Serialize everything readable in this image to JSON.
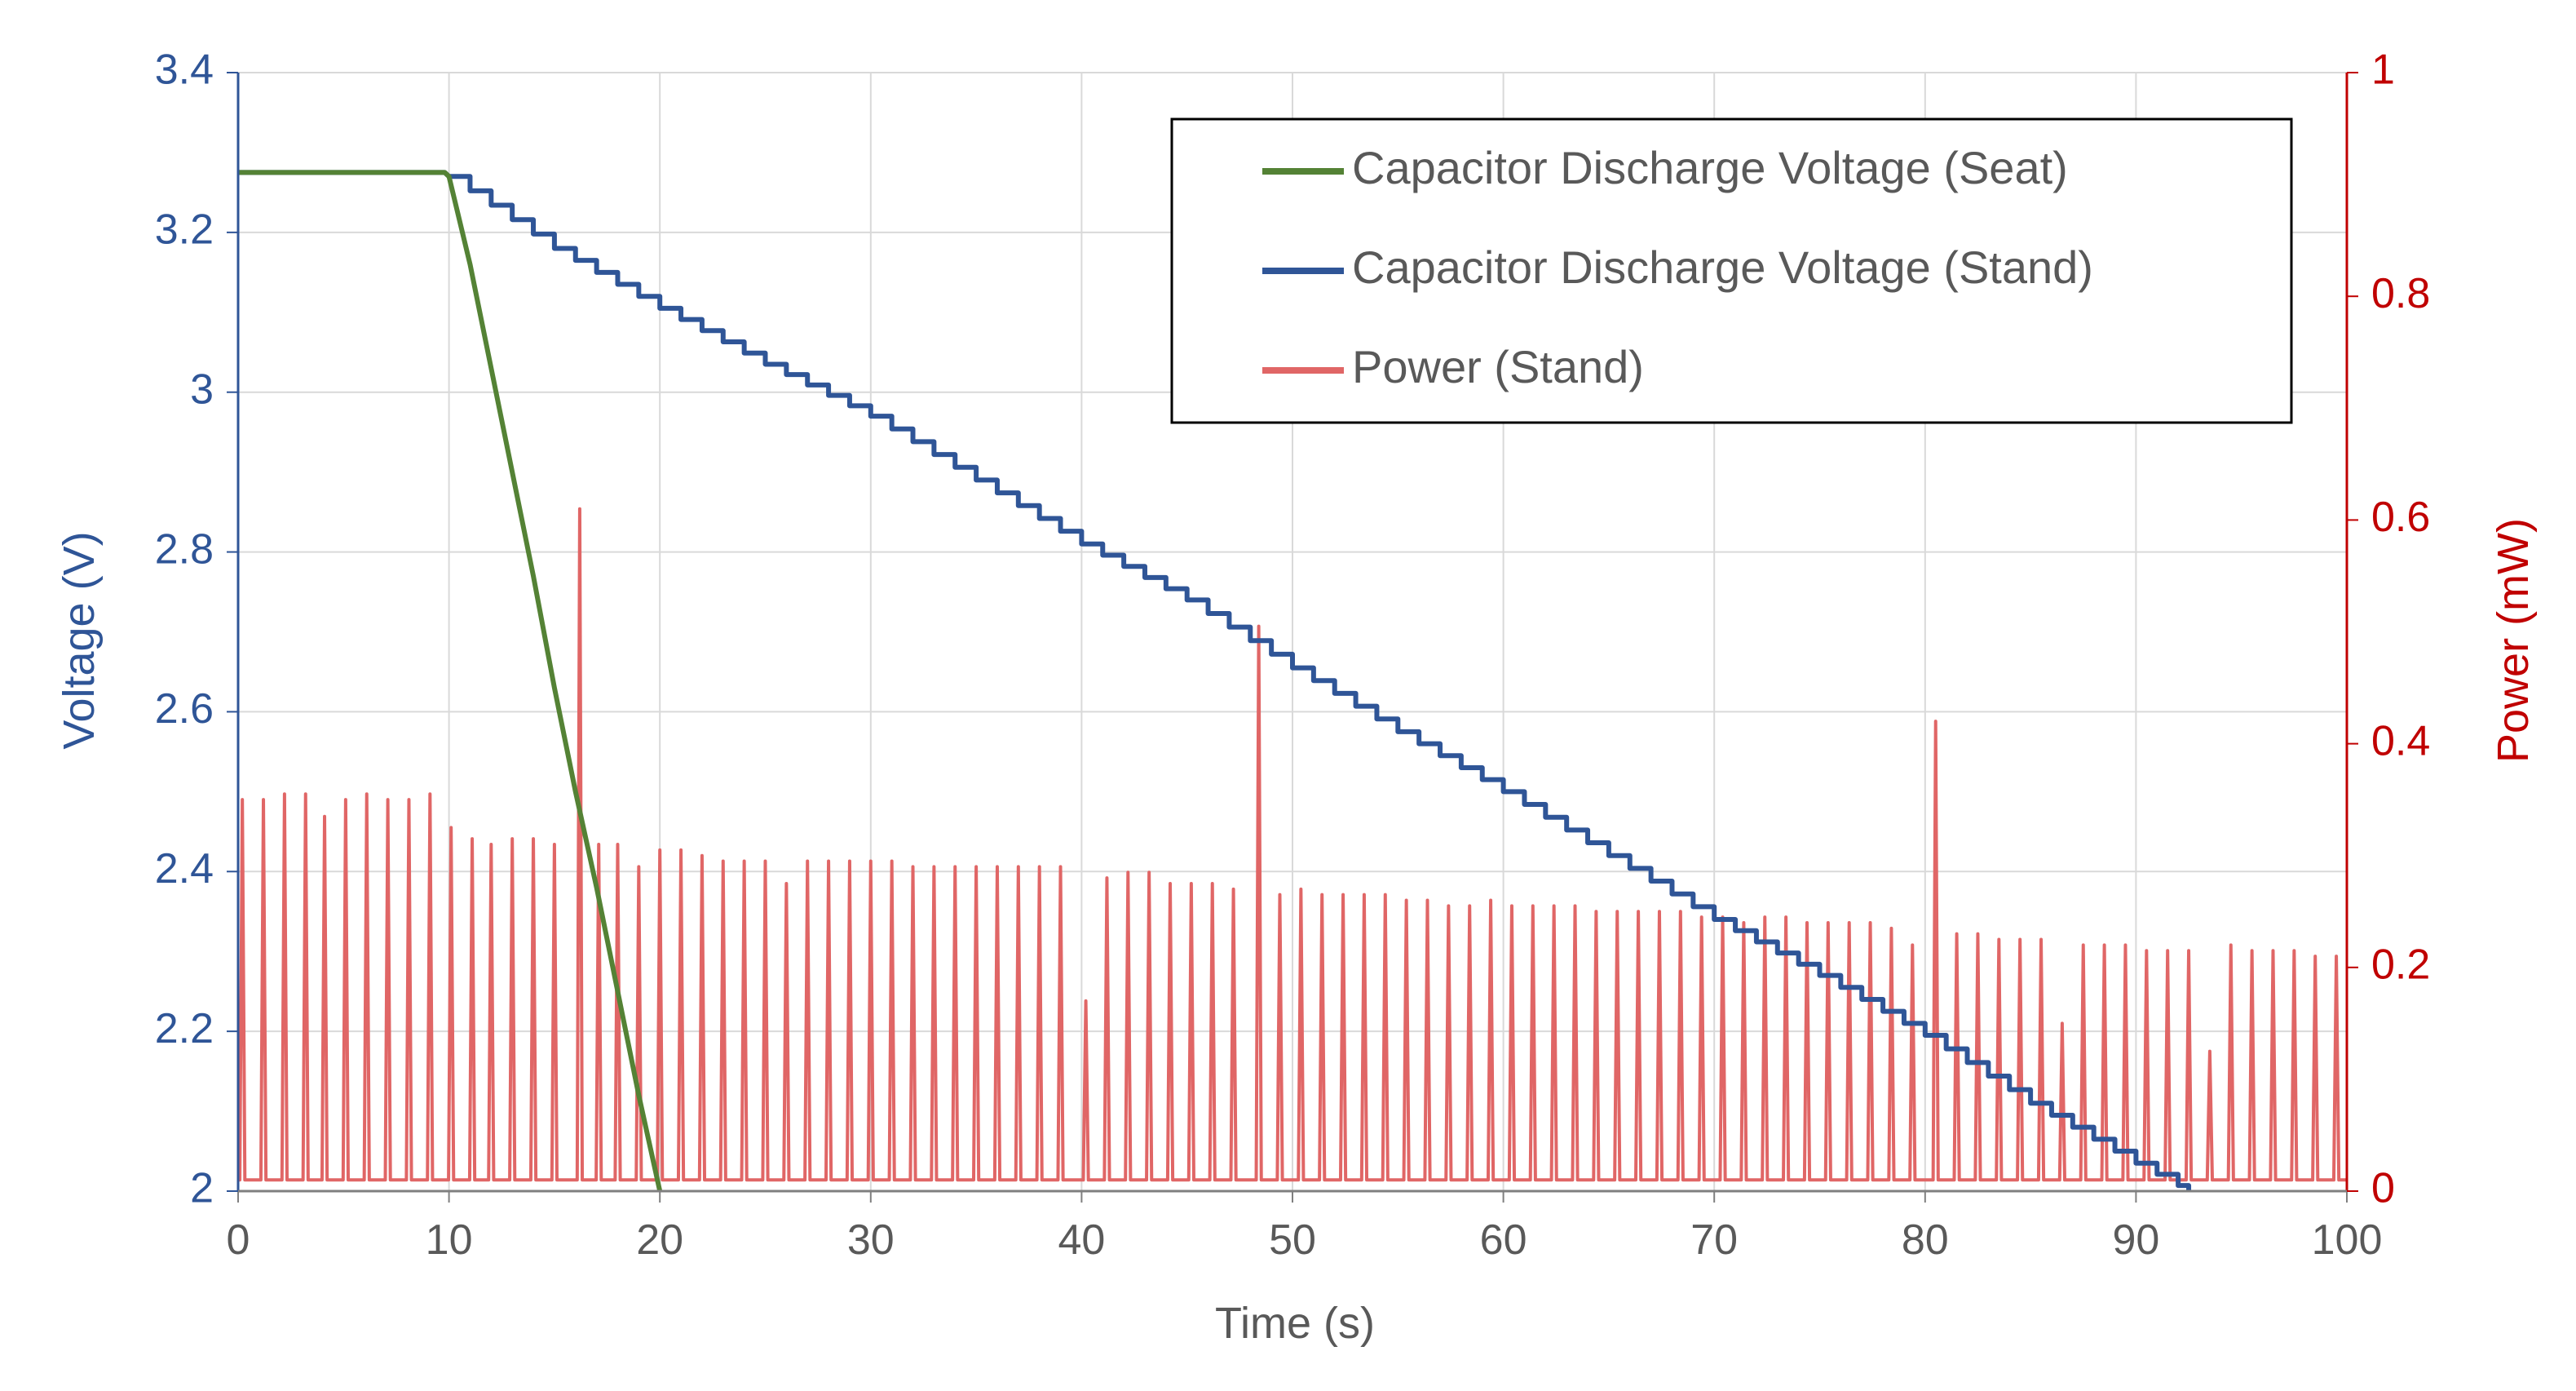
{
  "colors": {
    "voltage_axis": "#2F5597",
    "power_axis": "#C00000",
    "seat": "#548235",
    "stand": "#2F5597",
    "power": "#E06666",
    "grid": "#D9D9D9",
    "text": "#595959"
  },
  "chart_data": {
    "type": "line",
    "xlabel": "Time (s)",
    "ylabel": "Voltage (V)",
    "y2label": "Power (mW)",
    "xlim": [
      0,
      100
    ],
    "ylim": [
      2,
      3.4
    ],
    "y2lim": [
      0,
      1
    ],
    "xticks": [
      "0",
      "10",
      "20",
      "30",
      "40",
      "50",
      "60",
      "70",
      "80",
      "90",
      "100"
    ],
    "yticks": [
      "2",
      "2.2",
      "2.4",
      "2.6",
      "2.8",
      "3",
      "3.2",
      "3.4"
    ],
    "y2ticks": [
      "0",
      "0.2",
      "0.4",
      "0.6",
      "0.8",
      "1"
    ],
    "grid": true,
    "legend_position": "top-right",
    "series": [
      {
        "name": "Capacitor Discharge Voltage (Seat)",
        "axis": "left",
        "x": [
          0,
          9.8,
          10,
          11,
          12,
          13,
          14,
          15,
          16,
          17,
          18,
          19,
          20
        ],
        "y": [
          3.275,
          3.275,
          3.27,
          3.16,
          3.03,
          2.9,
          2.77,
          2.63,
          2.5,
          2.38,
          2.25,
          2.12,
          2.0
        ]
      },
      {
        "name": "Capacitor Discharge Voltage (Stand)",
        "axis": "left",
        "x": [
          0,
          9.8,
          10,
          15,
          20,
          25,
          30,
          35,
          40,
          45,
          50,
          55,
          60,
          65,
          70,
          75,
          80,
          85,
          90,
          92.5
        ],
        "y": [
          3.275,
          3.275,
          3.27,
          3.18,
          3.105,
          3.035,
          2.97,
          2.89,
          2.81,
          2.74,
          2.655,
          2.575,
          2.5,
          2.42,
          2.34,
          2.27,
          2.195,
          2.11,
          2.035,
          2.0
        ]
      },
      {
        "name": "Power (Stand)",
        "axis": "right",
        "type": "spikes",
        "baseline": 0.01,
        "x": [
          0.2,
          1.2,
          2.2,
          3.2,
          4.1,
          5.1,
          6.1,
          7.1,
          8.1,
          9.1,
          10.1,
          11.1,
          12.0,
          13.0,
          14.0,
          15.0,
          16.2,
          17.1,
          18.0,
          19.0,
          20.0,
          21.0,
          22.0,
          23.0,
          24.0,
          25.0,
          26.0,
          27.0,
          28.0,
          29.0,
          30.0,
          31.0,
          32.0,
          33.0,
          34.0,
          35.0,
          36.0,
          37.0,
          38.0,
          39.0,
          40.2,
          41.2,
          42.2,
          43.2,
          44.2,
          45.2,
          46.2,
          47.2,
          48.4,
          49.4,
          50.4,
          51.4,
          52.4,
          53.4,
          54.4,
          55.4,
          56.4,
          57.4,
          58.4,
          59.4,
          60.4,
          61.4,
          62.4,
          63.4,
          64.4,
          65.4,
          66.4,
          67.4,
          68.4,
          69.4,
          70.4,
          71.4,
          72.4,
          73.4,
          74.4,
          75.4,
          76.4,
          77.4,
          78.4,
          79.4,
          80.5,
          81.5,
          82.5,
          83.5,
          84.5,
          85.5,
          86.5,
          87.5,
          88.5,
          89.5,
          90.5,
          91.5,
          92.5,
          93.5,
          94.5,
          95.5,
          96.5,
          97.5,
          98.5,
          99.5
        ],
        "y": [
          0.35,
          0.35,
          0.355,
          0.355,
          0.335,
          0.35,
          0.355,
          0.35,
          0.35,
          0.355,
          0.325,
          0.315,
          0.31,
          0.315,
          0.315,
          0.31,
          0.61,
          0.31,
          0.31,
          0.29,
          0.305,
          0.305,
          0.3,
          0.295,
          0.295,
          0.295,
          0.275,
          0.295,
          0.295,
          0.295,
          0.295,
          0.295,
          0.29,
          0.29,
          0.29,
          0.29,
          0.29,
          0.29,
          0.29,
          0.29,
          0.17,
          0.28,
          0.285,
          0.285,
          0.275,
          0.275,
          0.275,
          0.27,
          0.505,
          0.265,
          0.27,
          0.265,
          0.265,
          0.265,
          0.265,
          0.26,
          0.26,
          0.255,
          0.255,
          0.26,
          0.255,
          0.255,
          0.255,
          0.255,
          0.25,
          0.25,
          0.25,
          0.25,
          0.25,
          0.245,
          0.245,
          0.24,
          0.245,
          0.245,
          0.24,
          0.24,
          0.24,
          0.24,
          0.235,
          0.22,
          0.42,
          0.23,
          0.23,
          0.225,
          0.225,
          0.225,
          0.15,
          0.22,
          0.22,
          0.22,
          0.215,
          0.215,
          0.215,
          0.125,
          0.22,
          0.215,
          0.215,
          0.215,
          0.21,
          0.21
        ]
      }
    ]
  }
}
